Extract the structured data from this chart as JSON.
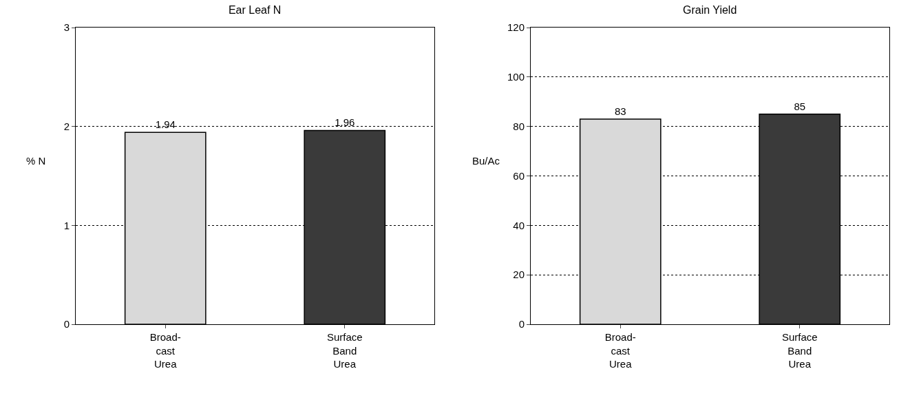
{
  "chart_data": [
    {
      "type": "bar",
      "title": "Ear Leaf N",
      "ylabel": "% N",
      "categories": [
        "Broad-\ncast\nUrea",
        "Surface\nBand\nUrea"
      ],
      "values": [
        1.94,
        1.96
      ],
      "colors": [
        "#d9d9d9",
        "#3a3a3a"
      ],
      "ylim": [
        0,
        3
      ],
      "yticks": [
        0,
        1,
        2,
        3
      ],
      "grid": "y",
      "data_labels": true
    },
    {
      "type": "bar",
      "title": "Grain Yield",
      "ylabel": "Bu/Ac",
      "categories": [
        "Broad-\ncast\nUrea",
        "Surface\nBand\nUrea"
      ],
      "values": [
        83,
        85
      ],
      "colors": [
        "#d9d9d9",
        "#3a3a3a"
      ],
      "ylim": [
        0,
        120
      ],
      "yticks": [
        0,
        20,
        40,
        60,
        80,
        100,
        120
      ],
      "grid": "y",
      "data_labels": true
    }
  ]
}
